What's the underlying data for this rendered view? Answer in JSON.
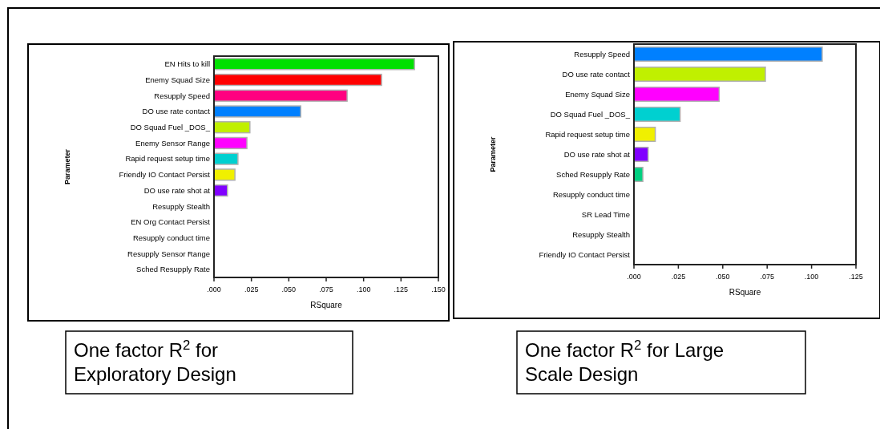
{
  "chart_data": [
    {
      "type": "bar",
      "orientation": "horizontal",
      "xlabel": "RSquare",
      "ylabel": "Parameter",
      "categories": [
        "EN Hits to kill",
        "Enemy Squad Size",
        "Resupply Speed",
        "DO use rate contact",
        "DO Squad Fuel _DOS_",
        "Enemy Sensor Range",
        "Rapid request setup time",
        "Friendly IO Contact Persist",
        "DO use rate shot at",
        "Resupply Stealth",
        "EN Org Contact Persist",
        "Resupply conduct time",
        "Resupply Sensor Range",
        "Sched Resupply Rate"
      ],
      "values": [
        0.134,
        0.112,
        0.089,
        0.058,
        0.024,
        0.022,
        0.016,
        0.014,
        0.009,
        0,
        0,
        0,
        0,
        0
      ],
      "colors": [
        "#00e000",
        "#ff0000",
        "#ff0080",
        "#0080ff",
        "#c0f000",
        "#ff00ff",
        "#00d0d0",
        "#f0f000",
        "#8000ff",
        "#cccccc",
        "#cccccc",
        "#cccccc",
        "#cccccc",
        "#cccccc"
      ],
      "xlim": [
        0,
        0.15
      ],
      "xticks": [
        {
          "value": 0,
          "label": ".000"
        },
        {
          "value": 0.025,
          "label": ".025"
        },
        {
          "value": 0.05,
          "label": ".050"
        },
        {
          "value": 0.075,
          "label": ".075"
        },
        {
          "value": 0.1,
          "label": ".100"
        },
        {
          "value": 0.125,
          "label": ".125"
        },
        {
          "value": 0.15,
          "label": ".150"
        }
      ],
      "grid": false,
      "annotations": [
        "One factor R$^{2}$ for Exploratory Design"
      ]
    },
    {
      "type": "bar",
      "orientation": "horizontal",
      "xlabel": "RSquare",
      "ylabel": "Parameter",
      "categories": [
        "Resupply Speed",
        "DO use rate contact",
        "Enemy Squad Size",
        "DO Squad Fuel _DOS_",
        "Rapid request setup time",
        "DO use rate shot at",
        "Sched Resupply Rate",
        "Resupply conduct time",
        "SR Lead Time",
        "Resupply Stealth",
        "Friendly IO Contact Persist"
      ],
      "values": [
        0.106,
        0.074,
        0.048,
        0.026,
        0.012,
        0.008,
        0.005,
        0,
        0,
        0,
        0
      ],
      "colors": [
        "#0080ff",
        "#c0f000",
        "#ff00ff",
        "#00d0d0",
        "#f0f000",
        "#8000ff",
        "#00d080",
        "#cccccc",
        "#cccccc",
        "#cccccc",
        "#cccccc"
      ],
      "xlim": [
        0,
        0.125
      ],
      "xticks": [
        {
          "value": 0,
          "label": ".000"
        },
        {
          "value": 0.025,
          "label": ".025"
        },
        {
          "value": 0.05,
          "label": ".050"
        },
        {
          "value": 0.075,
          "label": ".075"
        },
        {
          "value": 0.1,
          "label": ".100"
        },
        {
          "value": 0.125,
          "label": ".125"
        }
      ],
      "grid": false,
      "annotations": [
        "One factor R$^{2}$ for Large Scale Design"
      ]
    }
  ]
}
